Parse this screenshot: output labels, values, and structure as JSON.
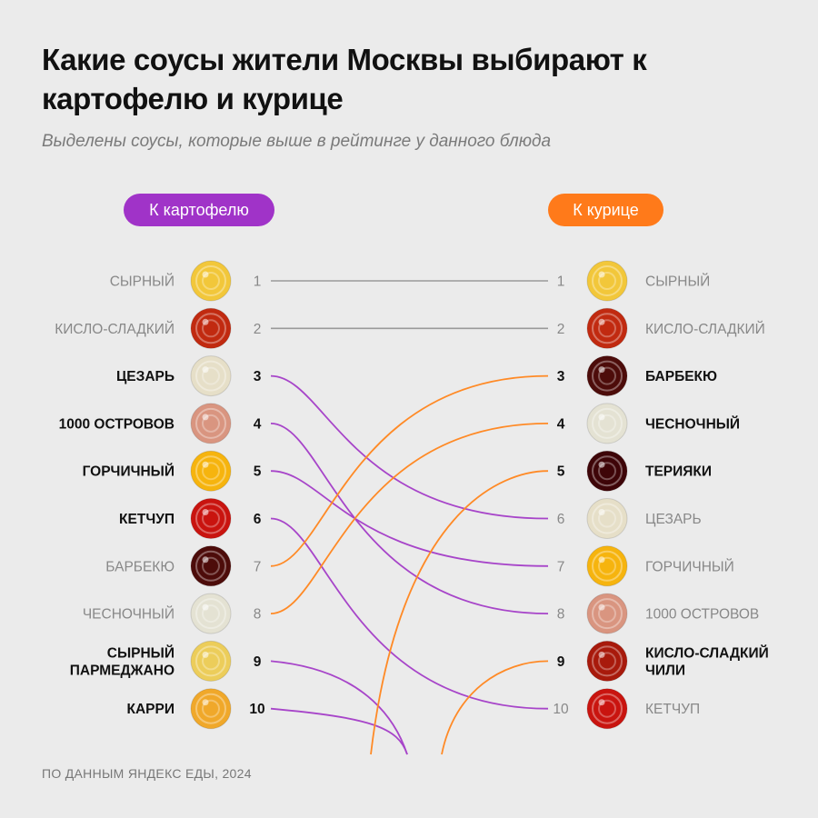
{
  "title": "Какие соусы жители Москвы выбирают к картофелю и курице",
  "subtitle": "Выделены соусы, которые выше в рейтинге у данного блюда",
  "footer": "ПО ДАННЫМ ЯНДЕКС ЕДЫ, 2024",
  "chart_data": {
    "type": "slope",
    "left_header": "К картофелю",
    "right_header": "К курице",
    "left": [
      {
        "rank": 1,
        "name": "СЫРНЫЙ",
        "highlight": false,
        "color": "#f2c73a",
        "icon": "cheese-sauce-icon"
      },
      {
        "rank": 2,
        "name": "КИСЛО-СЛАДКИЙ",
        "highlight": false,
        "color": "#c12a10",
        "icon": "sweet-sour-sauce-icon"
      },
      {
        "rank": 3,
        "name": "ЦЕЗАРЬ",
        "highlight": true,
        "color": "#e6dfc8",
        "icon": "caesar-sauce-icon"
      },
      {
        "rank": 4,
        "name": "1000 ОСТРОВОВ",
        "highlight": true,
        "color": "#d99580",
        "icon": "thousand-island-sauce-icon"
      },
      {
        "rank": 5,
        "name": "ГОРЧИЧНЫЙ",
        "highlight": true,
        "color": "#f6b40e",
        "icon": "mustard-sauce-icon"
      },
      {
        "rank": 6,
        "name": "КЕТЧУП",
        "highlight": true,
        "color": "#c9140f",
        "icon": "ketchup-icon"
      },
      {
        "rank": 7,
        "name": "БАРБЕКЮ",
        "highlight": false,
        "color": "#4d0c0a",
        "icon": "barbecue-sauce-icon"
      },
      {
        "rank": 8,
        "name": "ЧЕСНОЧНЫЙ",
        "highlight": false,
        "color": "#e4e2d3",
        "icon": "garlic-sauce-icon"
      },
      {
        "rank": 9,
        "name": "СЫРНЫЙ ПАРМЕДЖАНО",
        "lines": [
          "СЫРНЫЙ",
          "ПАРМЕДЖАНО"
        ],
        "highlight": true,
        "color": "#eccd5a",
        "icon": "parmesan-sauce-icon"
      },
      {
        "rank": 10,
        "name": "КАРРИ",
        "highlight": true,
        "color": "#f0a82a",
        "icon": "curry-sauce-icon"
      }
    ],
    "right": [
      {
        "rank": 1,
        "name": "СЫРНЫЙ",
        "highlight": false,
        "color": "#f2c73a",
        "icon": "cheese-sauce-icon"
      },
      {
        "rank": 2,
        "name": "КИСЛО-СЛАДКИЙ",
        "highlight": false,
        "color": "#c12a10",
        "icon": "sweet-sour-sauce-icon"
      },
      {
        "rank": 3,
        "name": "БАРБЕКЮ",
        "highlight": true,
        "color": "#4d0c0a",
        "icon": "barbecue-sauce-icon"
      },
      {
        "rank": 4,
        "name": "ЧЕСНОЧНЫЙ",
        "highlight": true,
        "color": "#e4e2d3",
        "icon": "garlic-sauce-icon"
      },
      {
        "rank": 5,
        "name": "ТЕРИЯКИ",
        "highlight": true,
        "color": "#3e0508",
        "icon": "teriyaki-sauce-icon"
      },
      {
        "rank": 6,
        "name": "ЦЕЗАРЬ",
        "highlight": false,
        "color": "#e6dfc8",
        "icon": "caesar-sauce-icon"
      },
      {
        "rank": 7,
        "name": "ГОРЧИЧНЫЙ",
        "highlight": false,
        "color": "#f6b40e",
        "icon": "mustard-sauce-icon"
      },
      {
        "rank": 8,
        "name": "1000 ОСТРОВОВ",
        "highlight": false,
        "color": "#d99580",
        "icon": "thousand-island-sauce-icon"
      },
      {
        "rank": 9,
        "name": "КИСЛО-СЛАДКИЙ ЧИЛИ",
        "lines": [
          "КИСЛО-СЛАДКИЙ",
          "ЧИЛИ"
        ],
        "highlight": true,
        "color": "#a81a0c",
        "icon": "sweet-chili-sauce-icon"
      },
      {
        "rank": 10,
        "name": "КЕТЧУП",
        "highlight": false,
        "color": "#c9140f",
        "icon": "ketchup-icon"
      }
    ],
    "links": [
      {
        "from": 1,
        "to": 1,
        "type": "same"
      },
      {
        "from": 2,
        "to": 2,
        "type": "same"
      },
      {
        "from": 3,
        "to": 6,
        "type": "potato"
      },
      {
        "from": 4,
        "to": 8,
        "type": "potato"
      },
      {
        "from": 5,
        "to": 7,
        "type": "potato"
      },
      {
        "from": 6,
        "to": 10,
        "type": "potato"
      },
      {
        "from": 7,
        "to": 3,
        "type": "chicken"
      },
      {
        "from": 8,
        "to": 4,
        "type": "chicken"
      },
      {
        "from": 9,
        "to": null,
        "type": "potato"
      },
      {
        "from": 10,
        "to": null,
        "type": "potato"
      },
      {
        "from": null,
        "to": 5,
        "type": "chicken"
      },
      {
        "from": null,
        "to": 9,
        "type": "chicken"
      }
    ],
    "colors": {
      "potato": "#a745c9",
      "chicken": "#ff8a26",
      "same": "#9a9a9a",
      "muted_text": "#888888",
      "bold_text": "#111111"
    }
  }
}
